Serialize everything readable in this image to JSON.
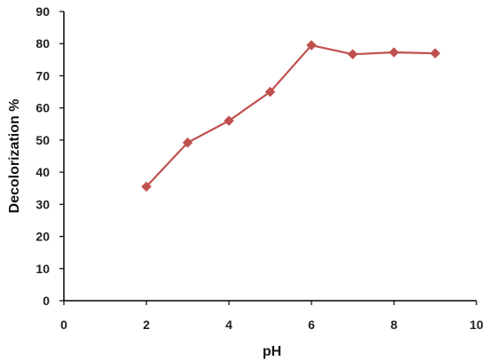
{
  "chart_data": {
    "type": "line",
    "title": "",
    "xlabel": "pH",
    "ylabel": "Decolorization %",
    "xlim": [
      0,
      10
    ],
    "ylim": [
      0,
      90
    ],
    "xticks": [
      "0",
      "2",
      "4",
      "6",
      "8",
      "10"
    ],
    "yticks": [
      "0",
      "10",
      "20",
      "30",
      "40",
      "50",
      "60",
      "70",
      "80",
      "90"
    ],
    "grid": false,
    "legend": "none",
    "series": [
      {
        "color": "#C0504D",
        "marker": "diamond",
        "x": [
          2,
          3,
          4,
          5,
          6,
          7,
          8,
          9
        ],
        "y": [
          35.5,
          49.2,
          56.0,
          65.0,
          79.5,
          76.7,
          77.3,
          77.0
        ]
      }
    ]
  }
}
